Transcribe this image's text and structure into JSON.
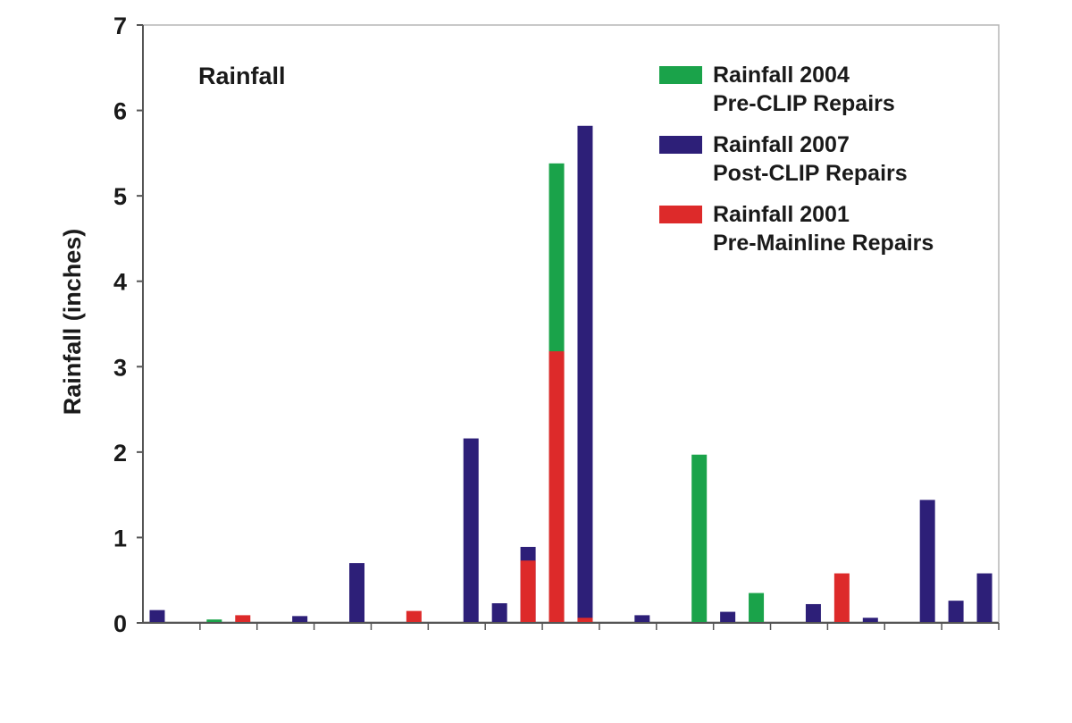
{
  "chart_data": {
    "type": "bar",
    "title": "Rainfall",
    "ylabel": "Rainfall (inches)",
    "xlabel": "",
    "ylim": [
      0,
      7
    ],
    "yticks": [
      0,
      1,
      2,
      3,
      4,
      5,
      6,
      7
    ],
    "grid": false,
    "legend_position": "top-right",
    "legend": [
      {
        "name": "Rainfall 2004",
        "sub": "Pre-CLIP Repairs",
        "color": "#1aa34a"
      },
      {
        "name": "Rainfall 2007",
        "sub": "Post-CLIP Repairs",
        "color": "#2d1f78"
      },
      {
        "name": "Rainfall 2001",
        "sub": "Pre-Mainline Repairs",
        "color": "#dd2a2a"
      }
    ],
    "slot_count": 30,
    "bars": [
      {
        "slot": 0,
        "series": "Rainfall 2007",
        "value": 0.15
      },
      {
        "slot": 2,
        "series": "Rainfall 2004",
        "value": 0.04
      },
      {
        "slot": 3,
        "series": "Rainfall 2001",
        "value": 0.09
      },
      {
        "slot": 4,
        "series": "Rainfall 2004",
        "value": 0.01
      },
      {
        "slot": 5,
        "series": "Rainfall 2007",
        "value": 0.08
      },
      {
        "slot": 7,
        "series": "Rainfall 2007",
        "value": 0.7
      },
      {
        "slot": 9,
        "series": "Rainfall 2001",
        "value": 0.14
      },
      {
        "slot": 11,
        "series": "Rainfall 2007",
        "value": 2.16
      },
      {
        "slot": 12,
        "series": "Rainfall 2007",
        "value": 0.23
      },
      {
        "slot": 13,
        "series": "Rainfall 2007",
        "value": 0.89
      },
      {
        "slot": 13,
        "series": "Rainfall 2001",
        "value": 0.73
      },
      {
        "slot": 14,
        "series": "Rainfall 2004",
        "value": 5.38
      },
      {
        "slot": 14,
        "series": "Rainfall 2001",
        "value": 3.18
      },
      {
        "slot": 15,
        "series": "Rainfall 2007",
        "value": 5.82
      },
      {
        "slot": 15,
        "series": "Rainfall 2001",
        "value": 0.06
      },
      {
        "slot": 17,
        "series": "Rainfall 2007",
        "value": 0.09
      },
      {
        "slot": 19,
        "series": "Rainfall 2004",
        "value": 1.97
      },
      {
        "slot": 20,
        "series": "Rainfall 2007",
        "value": 0.13
      },
      {
        "slot": 21,
        "series": "Rainfall 2004",
        "value": 0.35
      },
      {
        "slot": 23,
        "series": "Rainfall 2007",
        "value": 0.22
      },
      {
        "slot": 24,
        "series": "Rainfall 2001",
        "value": 0.58
      },
      {
        "slot": 25,
        "series": "Rainfall 2007",
        "value": 0.06
      },
      {
        "slot": 27,
        "series": "Rainfall 2007",
        "value": 1.44
      },
      {
        "slot": 28,
        "series": "Rainfall 2007",
        "value": 0.26
      },
      {
        "slot": 29,
        "series": "Rainfall 2007",
        "value": 0.58
      }
    ]
  }
}
